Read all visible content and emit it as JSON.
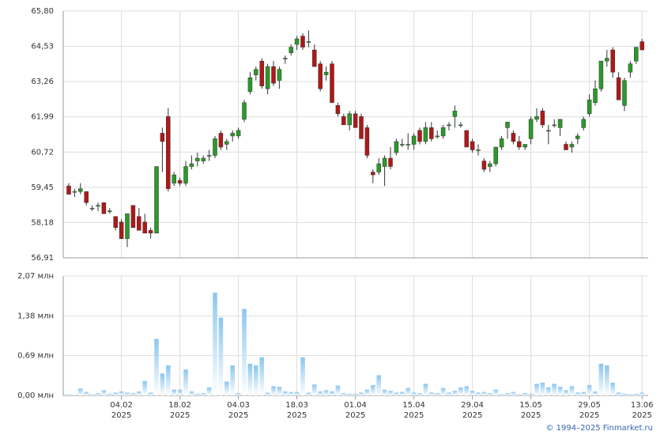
{
  "chart_data": {
    "type": "candlestick",
    "open": [
      59.5,
      59.3,
      59.3,
      59.3,
      58.7,
      58.8,
      58.9,
      58.6,
      58.4,
      58.2,
      57.6,
      58.8,
      58.4,
      58.2,
      57.9,
      57.8,
      61.4,
      62.0,
      59.6,
      59.7,
      59.6,
      60.2,
      60.4,
      60.4,
      60.6,
      60.6,
      61.4,
      61.0,
      61.3,
      61.3,
      61.9,
      62.9,
      63.5,
      64.0,
      63.0,
      63.8,
      63.3,
      64.1,
      64.3,
      64.6,
      64.9,
      64.7,
      64.4,
      63.9,
      63.5,
      63.9,
      62.4,
      62.0,
      61.7,
      62.1,
      62.0,
      61.6,
      60.0,
      60.0,
      60.2,
      60.5,
      60.7,
      61.0,
      61.0,
      61.0,
      61.5,
      61.1,
      61.6,
      61.3,
      61.3,
      61.7,
      62.0,
      61.7,
      61.5,
      61.1,
      60.8,
      60.4,
      60.2,
      60.3,
      60.9,
      61.6,
      61.4,
      61.1,
      60.9,
      61.2,
      61.9,
      62.2,
      61.5,
      61.7,
      61.6,
      61.0,
      60.9,
      61.2,
      61.6,
      62.1,
      62.5,
      63.0,
      64.0,
      64.4,
      63.4,
      62.4,
      63.6,
      64.0,
      64.7
    ],
    "high": [
      59.6,
      59.4,
      59.6,
      59.3,
      58.8,
      58.9,
      58.9,
      58.7,
      58.4,
      58.3,
      58.5,
      58.8,
      58.7,
      58.5,
      58.0,
      60.2,
      61.6,
      62.3,
      60.0,
      59.8,
      60.4,
      60.6,
      60.7,
      60.6,
      60.8,
      61.3,
      61.5,
      61.2,
      61.5,
      61.6,
      62.6,
      63.6,
      63.8,
      64.1,
      63.9,
      64.0,
      63.8,
      64.2,
      64.6,
      64.9,
      65.0,
      65.1,
      64.6,
      64.0,
      63.8,
      64.0,
      62.5,
      62.1,
      62.2,
      62.2,
      62.1,
      61.7,
      60.1,
      60.5,
      60.6,
      60.9,
      61.2,
      61.2,
      61.4,
      61.4,
      61.6,
      61.8,
      61.8,
      61.5,
      61.7,
      61.8,
      62.4,
      61.8,
      61.5,
      61.2,
      61.0,
      60.5,
      60.4,
      60.9,
      61.3,
      61.8,
      61.5,
      61.3,
      61.0,
      62.0,
      62.3,
      62.3,
      61.7,
      61.9,
      61.9,
      61.1,
      61.1,
      61.4,
      62.0,
      62.8,
      63.3,
      64.0,
      64.4,
      64.5,
      63.6,
      63.4,
      64.0,
      64.5,
      64.8
    ],
    "low": [
      59.2,
      59.1,
      59.2,
      58.8,
      58.6,
      58.6,
      58.5,
      58.5,
      57.9,
      57.6,
      57.3,
      58.0,
      57.9,
      57.8,
      57.6,
      57.8,
      60.0,
      59.3,
      59.5,
      59.5,
      59.5,
      60.1,
      60.2,
      60.3,
      60.4,
      60.5,
      60.8,
      60.8,
      61.1,
      61.2,
      61.8,
      62.8,
      63.3,
      63.0,
      62.8,
      63.1,
      63.0,
      63.9,
      64.2,
      64.4,
      64.4,
      64.5,
      63.8,
      62.9,
      63.3,
      62.5,
      62.0,
      61.7,
      61.5,
      61.6,
      61.2,
      60.5,
      59.6,
      59.9,
      59.5,
      60.1,
      60.6,
      60.9,
      60.8,
      60.8,
      61.0,
      61.0,
      61.1,
      61.2,
      61.2,
      61.5,
      61.6,
      61.6,
      60.9,
      60.7,
      60.6,
      60.0,
      60.0,
      60.2,
      60.8,
      61.2,
      61.0,
      60.8,
      60.8,
      61.0,
      61.8,
      61.6,
      61.0,
      61.6,
      61.3,
      60.8,
      60.7,
      61.0,
      61.5,
      62.0,
      62.4,
      62.9,
      63.8,
      63.4,
      62.6,
      62.2,
      63.4,
      63.9,
      64.4
    ],
    "close": [
      59.2,
      59.3,
      59.4,
      58.9,
      58.7,
      58.8,
      58.5,
      58.6,
      58.0,
      57.6,
      58.5,
      58.0,
      57.9,
      57.8,
      57.8,
      60.2,
      61.1,
      59.4,
      59.9,
      59.6,
      60.2,
      60.3,
      60.5,
      60.5,
      60.6,
      61.2,
      60.9,
      61.1,
      61.4,
      61.5,
      62.5,
      63.4,
      63.7,
      63.1,
      63.8,
      63.2,
      63.7,
      64.1,
      64.5,
      64.8,
      64.5,
      64.7,
      63.8,
      63.0,
      63.6,
      62.5,
      62.1,
      61.7,
      62.1,
      61.6,
      61.2,
      60.6,
      59.9,
      60.3,
      60.5,
      60.2,
      61.1,
      61.0,
      61.0,
      61.3,
      61.1,
      61.6,
      61.2,
      61.3,
      61.6,
      61.7,
      62.2,
      61.7,
      60.9,
      60.8,
      60.8,
      60.1,
      60.3,
      60.9,
      61.2,
      61.8,
      61.1,
      60.9,
      61.0,
      61.9,
      62.0,
      61.7,
      61.5,
      61.7,
      61.9,
      60.8,
      61.0,
      61.3,
      61.9,
      62.6,
      63.0,
      64.0,
      64.1,
      63.6,
      62.6,
      63.3,
      63.9,
      64.5,
      64.4
    ],
    "volume": [
      0.02,
      0.01,
      0.12,
      0.06,
      0.02,
      0.04,
      0.09,
      0.03,
      0.05,
      0.07,
      0.05,
      0.04,
      0.07,
      0.25,
      0.05,
      0.98,
      0.38,
      0.52,
      0.1,
      0.1,
      0.45,
      0.07,
      0.03,
      0.04,
      0.14,
      1.78,
      1.35,
      0.24,
      0.52,
      0.04,
      1.5,
      0.55,
      0.52,
      0.66,
      0.05,
      0.16,
      0.15,
      0.07,
      0.06,
      0.06,
      0.66,
      0.05,
      0.19,
      0.07,
      0.09,
      0.07,
      0.17,
      0.04,
      0.03,
      0.03,
      0.05,
      0.1,
      0.18,
      0.35,
      0.1,
      0.08,
      0.05,
      0.06,
      0.13,
      0.05,
      0.04,
      0.2,
      0.05,
      0.04,
      0.13,
      0.05,
      0.08,
      0.14,
      0.16,
      0.08,
      0.05,
      0.06,
      0.04,
      0.1,
      0.02,
      0.04,
      0.06,
      0.02,
      0.04,
      0.03,
      0.2,
      0.22,
      0.14,
      0.2,
      0.15,
      0.09,
      0.16,
      0.05,
      0.06,
      0.18,
      0.07,
      0.55,
      0.52,
      0.22,
      0.05,
      0.03,
      0.02,
      0.03,
      0.05
    ],
    "up_color": "#2a9a2a",
    "down_color": "#b01818",
    "volume_color": "#8cc6ee",
    "ylim": [
      56.91,
      65.8
    ],
    "yticks": [
      {
        "value": 56.91,
        "label": "56,91"
      },
      {
        "value": 58.18,
        "label": "58,18"
      },
      {
        "value": 59.45,
        "label": "59,45"
      },
      {
        "value": 60.72,
        "label": "60,72"
      },
      {
        "value": 61.99,
        "label": "61,99"
      },
      {
        "value": 63.26,
        "label": "63,26"
      },
      {
        "value": 64.53,
        "label": "64,53"
      },
      {
        "value": 65.8,
        "label": "65,80"
      }
    ],
    "y2lim": [
      0,
      2.07
    ],
    "y2ticks": [
      {
        "value": 0,
        "label": "0,00 млн"
      },
      {
        "value": 0.69,
        "label": "0,69 млн"
      },
      {
        "value": 1.38,
        "label": "1,38 млн"
      },
      {
        "value": 2.07,
        "label": "2,07 млн"
      }
    ],
    "xticks": [
      {
        "value": 9,
        "label": "04.02",
        "year": "2025"
      },
      {
        "value": 19,
        "label": "18.02",
        "year": "2025"
      },
      {
        "value": 29,
        "label": "04.03",
        "year": "2025"
      },
      {
        "value": 39,
        "label": "18.03",
        "year": "2025"
      },
      {
        "value": 49,
        "label": "01.04",
        "year": "2025"
      },
      {
        "value": 59,
        "label": "15.04",
        "year": "2025"
      },
      {
        "value": 69,
        "label": "29.04",
        "year": "2025"
      },
      {
        "value": 79,
        "label": "15.05",
        "year": "2025"
      },
      {
        "value": 89,
        "label": "29.05",
        "year": "2025"
      },
      {
        "value": 98,
        "label": "13.06",
        "year": "2025"
      }
    ],
    "grid": true,
    "copyright": "© 1994–2025 Finmarket.ru"
  }
}
